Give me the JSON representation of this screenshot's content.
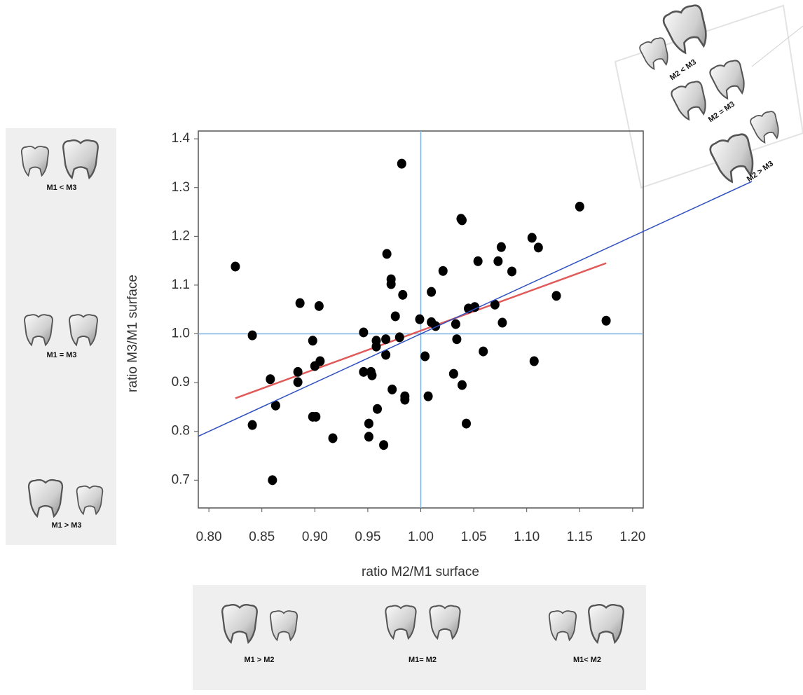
{
  "chart_data": {
    "type": "scatter",
    "x_label": "ratio M2/M1 surface",
    "y_label": "ratio M3/M1 surface",
    "x": [
      0.825,
      0.841,
      0.841,
      0.858,
      0.863,
      0.86,
      0.884,
      0.884,
      0.886,
      0.898,
      0.898,
      0.901,
      0.9,
      0.905,
      0.904,
      0.917,
      0.946,
      0.946,
      0.953,
      0.954,
      0.951,
      0.951,
      0.959,
      0.958,
      0.958,
      0.967,
      0.967,
      0.965,
      0.968,
      0.972,
      0.972,
      0.973,
      0.976,
      0.98,
      0.982,
      0.983,
      0.985,
      0.985,
      0.999,
      1.004,
      1.007,
      1.01,
      1.01,
      1.014,
      1.021,
      1.031,
      1.033,
      1.034,
      1.038,
      1.039,
      1.039,
      1.043,
      1.045,
      1.051,
      1.054,
      1.059,
      1.07,
      1.073,
      1.076,
      1.077,
      1.086,
      1.105,
      1.107,
      1.111,
      1.128,
      1.15,
      1.175
    ],
    "values": [
      1.138,
      0.997,
      0.813,
      0.907,
      0.853,
      0.7,
      0.922,
      0.901,
      1.063,
      0.986,
      0.83,
      0.83,
      0.934,
      0.944,
      1.057,
      0.786,
      1.003,
      0.922,
      0.922,
      0.915,
      0.816,
      0.789,
      0.846,
      0.986,
      0.974,
      0.989,
      0.957,
      0.772,
      1.164,
      1.112,
      1.102,
      0.886,
      1.036,
      0.993,
      1.349,
      1.08,
      0.872,
      0.865,
      1.03,
      0.954,
      0.872,
      1.086,
      1.024,
      1.016,
      1.129,
      0.918,
      1.02,
      0.989,
      1.236,
      1.233,
      0.895,
      0.816,
      1.052,
      1.055,
      1.149,
      0.964,
      1.06,
      1.149,
      1.178,
      1.023,
      1.128,
      1.197,
      0.944,
      1.177,
      1.078,
      1.261,
      1.027
    ],
    "color": "#000000",
    "fit_line": {
      "x": [
        0.825,
        1.175
      ],
      "values": [
        0.868,
        1.145
      ],
      "color": "#e05a5a"
    },
    "ref_lines": {
      "x": 1.0,
      "y": 1.0,
      "color": "#7fb2e0"
    },
    "diagonal": {
      "color": "#2f50c0"
    },
    "xlim": [
      0.79,
      1.21
    ],
    "ylim": [
      0.643,
      1.416
    ],
    "xticks": [
      {
        "value": 0.8,
        "label": "0.80"
      },
      0.85,
      {
        "value": 0.9,
        "label": "0.90"
      },
      0.95,
      {
        "value": 1.0,
        "label": "1.00"
      },
      1.05,
      {
        "value": 1.1,
        "label": "1.10"
      },
      1.15,
      {
        "value": 1.2,
        "label": "1.20"
      }
    ],
    "yticks": [
      0.7,
      0.8,
      0.9,
      {
        "value": 1.0,
        "label": "1.0"
      },
      1.1,
      1.2,
      1.3,
      1.4
    ]
  },
  "panels": {
    "left": [
      "M1 < M3",
      "M1 = M3",
      "M1 > M3"
    ],
    "bottom": [
      "M1 > M2",
      "M1= M2",
      "M1< M2"
    ],
    "corner": [
      "M2 < M3",
      "M2 = M3",
      "M2 > M3"
    ]
  }
}
